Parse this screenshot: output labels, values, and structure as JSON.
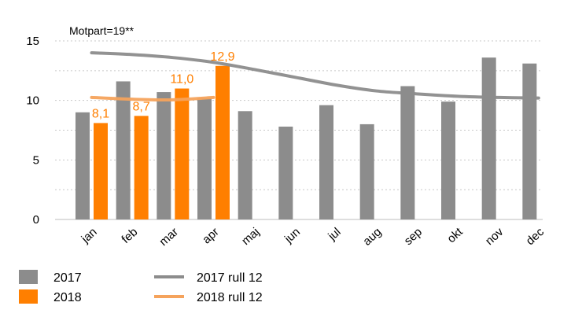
{
  "chart_data": {
    "type": "bar",
    "title": "",
    "annotation": "Motpart=19**",
    "categories": [
      "jan",
      "feb",
      "mar",
      "apr",
      "maj",
      "jun",
      "jul",
      "aug",
      "sep",
      "okt",
      "nov",
      "dec"
    ],
    "ylim": [
      0,
      15
    ],
    "yticks": [
      0,
      5,
      10,
      15
    ],
    "grid": true,
    "series": [
      {
        "name": "2017",
        "kind": "bar",
        "color": "#8c8c8c",
        "values": [
          9.0,
          11.6,
          10.7,
          10.2,
          9.1,
          7.8,
          9.6,
          8.0,
          11.2,
          9.9,
          13.6,
          13.1
        ]
      },
      {
        "name": "2018",
        "kind": "bar",
        "color": "#ff7f00",
        "values": [
          8.1,
          8.7,
          11.0,
          12.9,
          null,
          null,
          null,
          null,
          null,
          null,
          null,
          null
        ],
        "labels": [
          "8,1",
          "8,7",
          "11,0",
          "12,9"
        ]
      },
      {
        "name": "2017 rull 12",
        "kind": "line",
        "color": "#8c8c8c",
        "values": [
          14.0,
          13.85,
          13.6,
          13.2,
          12.6,
          11.95,
          11.3,
          10.8,
          10.55,
          10.35,
          10.25,
          10.2
        ]
      },
      {
        "name": "2018 rull 12",
        "kind": "line",
        "color": "#f5a35c",
        "values": [
          10.25,
          10.1,
          10.05,
          10.25,
          null,
          null,
          null,
          null,
          null,
          null,
          null,
          null
        ]
      }
    ],
    "legend": [
      {
        "label": "2017",
        "type": "box",
        "color": "#8c8c8c"
      },
      {
        "label": "2018",
        "type": "box",
        "color": "#ff7f00"
      },
      {
        "label": "2017 rull 12",
        "type": "line",
        "color": "#8c8c8c"
      },
      {
        "label": "2018 rull 12",
        "type": "line",
        "color": "#f5a35c"
      }
    ]
  }
}
